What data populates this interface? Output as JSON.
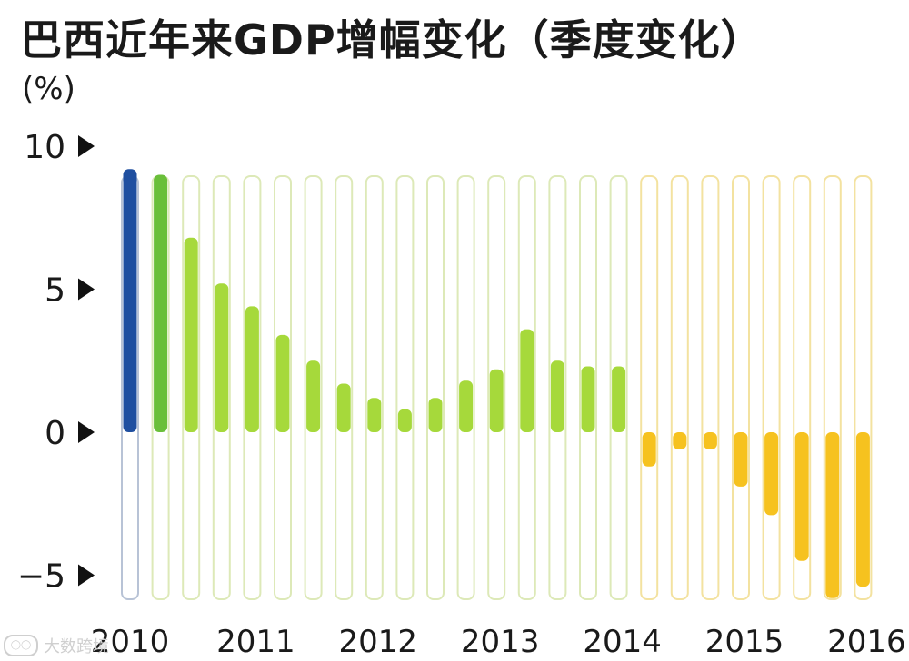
{
  "title": "巴西近年来GDP增幅变化（季度变化）",
  "unit": "(%)",
  "watermark": {
    "text": "大数跨境",
    "icon": "watermark-logo-icon"
  },
  "colors": {
    "highlight_2010": "#1f4fa0",
    "green_dark": "#6abf3a",
    "green": "#a6d93b",
    "yellow": "#f6c21f",
    "track_green_border": "#dde9b8",
    "track_yellow_border": "#f3e2a0",
    "track_blue_border": "#b8c3d6"
  },
  "chart_data": {
    "type": "bar",
    "title": "巴西近年来GDP增幅变化（季度变化）",
    "ylabel": "(%)",
    "ylim": [
      -6,
      10
    ],
    "yticks": [
      10,
      5,
      0,
      -5
    ],
    "ytick_labels": [
      "10",
      "5",
      "0",
      "−5"
    ],
    "x_year_labels": [
      "2010",
      "2011",
      "2012",
      "2013",
      "2014",
      "2015",
      "2016"
    ],
    "values": [
      9.2,
      9.0,
      6.8,
      5.2,
      4.4,
      3.4,
      2.5,
      1.7,
      1.2,
      0.8,
      1.2,
      1.8,
      2.2,
      3.6,
      2.5,
      2.3,
      2.3,
      -1.2,
      -0.6,
      -0.6,
      -1.9,
      -2.9,
      -4.5,
      -5.8,
      -5.4
    ]
  }
}
